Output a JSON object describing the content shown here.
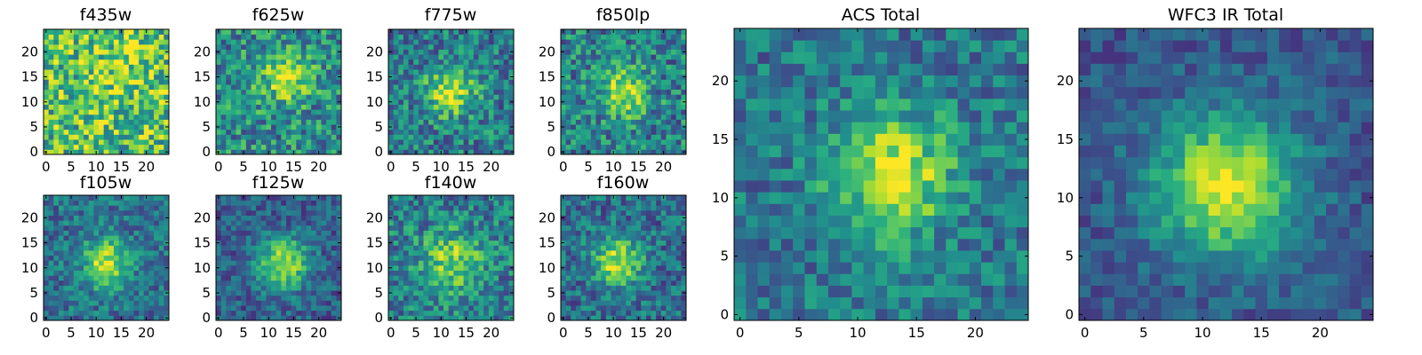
{
  "chart_data": [
    {
      "type": "heatmap",
      "title": "f435w",
      "grid_size": 25,
      "peak": [
        15,
        16
      ],
      "sigma": 5.0,
      "amplitude": 0.12,
      "noise": 0.33,
      "base": 0.7,
      "x_ticks": [
        "0",
        "5",
        "10",
        "15",
        "20"
      ],
      "y_ticks": [
        "0",
        "5",
        "10",
        "15",
        "20"
      ],
      "xlim": [
        0,
        24
      ],
      "ylim": [
        0,
        24
      ]
    },
    {
      "type": "heatmap",
      "title": "f625w",
      "grid_size": 25,
      "peak": [
        13,
        15
      ],
      "sigma": 3.6,
      "amplitude": 0.4,
      "noise": 0.28,
      "base": 0.48,
      "x_ticks": [
        "0",
        "5",
        "10",
        "15",
        "20"
      ],
      "y_ticks": [
        "0",
        "5",
        "10",
        "15",
        "20"
      ],
      "xlim": [
        0,
        24
      ],
      "ylim": [
        0,
        24
      ]
    },
    {
      "type": "heatmap",
      "title": "f775w",
      "grid_size": 25,
      "peak": [
        12,
        12
      ],
      "sigma": 3.4,
      "amplitude": 0.5,
      "noise": 0.25,
      "base": 0.42,
      "x_ticks": [
        "0",
        "5",
        "10",
        "15",
        "20"
      ],
      "y_ticks": [
        "0",
        "5",
        "10",
        "15",
        "20"
      ],
      "xlim": [
        0,
        24
      ],
      "ylim": [
        0,
        24
      ]
    },
    {
      "type": "heatmap",
      "title": "f850lp",
      "grid_size": 25,
      "peak": [
        12,
        12
      ],
      "sigma": 3.4,
      "amplitude": 0.45,
      "noise": 0.27,
      "base": 0.44,
      "x_ticks": [
        "0",
        "5",
        "10",
        "15",
        "20"
      ],
      "y_ticks": [
        "0",
        "5",
        "10",
        "15",
        "20"
      ],
      "xlim": [
        0,
        24
      ],
      "ylim": [
        0,
        24
      ]
    },
    {
      "type": "heatmap",
      "title": "f105w",
      "grid_size": 25,
      "peak": [
        12,
        11
      ],
      "sigma": 3.2,
      "amplitude": 0.55,
      "noise": 0.2,
      "base": 0.38,
      "x_ticks": [
        "0",
        "5",
        "10",
        "15",
        "20"
      ],
      "y_ticks": [
        "0",
        "5",
        "10",
        "15",
        "20"
      ],
      "xlim": [
        0,
        24
      ],
      "ylim": [
        0,
        24
      ]
    },
    {
      "type": "heatmap",
      "title": "f125w",
      "grid_size": 25,
      "peak": [
        13,
        11
      ],
      "sigma": 3.6,
      "amplitude": 0.6,
      "noise": 0.18,
      "base": 0.3,
      "x_ticks": [
        "0",
        "5",
        "10",
        "15",
        "20"
      ],
      "y_ticks": [
        "0",
        "5",
        "10",
        "15",
        "20"
      ],
      "xlim": [
        0,
        24
      ],
      "ylim": [
        0,
        24
      ]
    },
    {
      "type": "heatmap",
      "title": "f140w",
      "grid_size": 25,
      "peak": [
        12,
        11
      ],
      "sigma": 4.5,
      "amplitude": 0.4,
      "noise": 0.24,
      "base": 0.42,
      "x_ticks": [
        "0",
        "5",
        "10",
        "15",
        "20"
      ],
      "y_ticks": [
        "0",
        "5",
        "10",
        "15",
        "20"
      ],
      "xlim": [
        0,
        24
      ],
      "ylim": [
        0,
        24
      ]
    },
    {
      "type": "heatmap",
      "title": "f160w",
      "grid_size": 25,
      "peak": [
        11,
        11
      ],
      "sigma": 3.4,
      "amplitude": 0.55,
      "noise": 0.22,
      "base": 0.36,
      "x_ticks": [
        "0",
        "5",
        "10",
        "15",
        "20"
      ],
      "y_ticks": [
        "0",
        "5",
        "10",
        "15",
        "20"
      ],
      "xlim": [
        0,
        24
      ],
      "ylim": [
        0,
        24
      ]
    },
    {
      "type": "heatmap",
      "title": "ACS Total",
      "grid_size": 25,
      "peak": [
        13,
        12
      ],
      "sigma": 3.6,
      "amplitude": 0.55,
      "noise": 0.2,
      "base": 0.4,
      "x_ticks": [
        "0",
        "5",
        "10",
        "15",
        "20"
      ],
      "y_ticks": [
        "0",
        "5",
        "10",
        "15",
        "20"
      ],
      "xlim": [
        0,
        24
      ],
      "ylim": [
        0,
        24
      ]
    },
    {
      "type": "heatmap",
      "title": "WFC3 IR Total",
      "grid_size": 25,
      "peak": [
        12,
        11
      ],
      "sigma": 4.3,
      "amplitude": 0.68,
      "noise": 0.13,
      "base": 0.27,
      "x_ticks": [
        "0",
        "5",
        "10",
        "15",
        "20"
      ],
      "y_ticks": [
        "0",
        "5",
        "10",
        "15",
        "20"
      ],
      "xlim": [
        0,
        24
      ],
      "ylim": [
        0,
        24
      ]
    }
  ],
  "colormap": [
    "#440154",
    "#472c7a",
    "#3b518b",
    "#2c718e",
    "#21908d",
    "#27ad81",
    "#5cc863",
    "#aadc32",
    "#fde725"
  ]
}
